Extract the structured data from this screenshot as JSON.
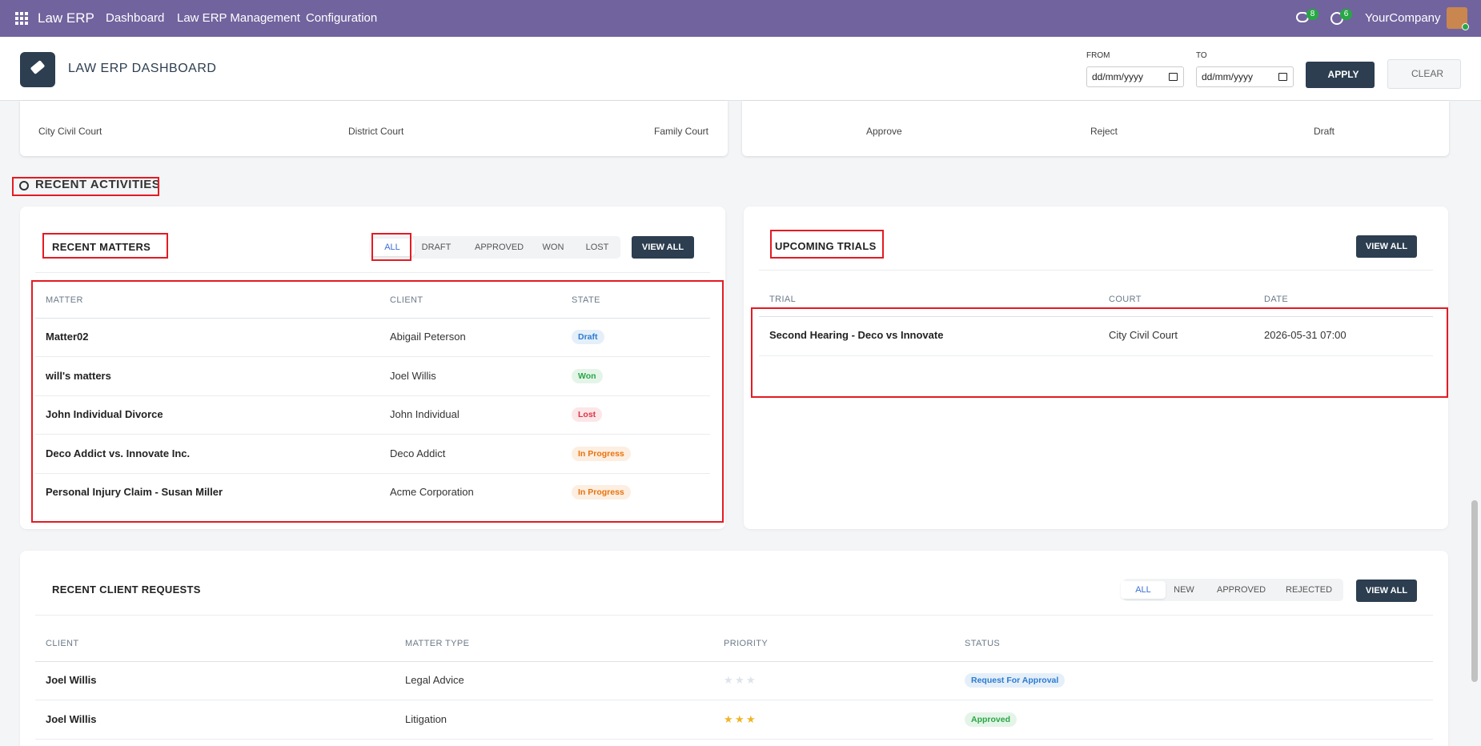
{
  "navbar": {
    "app": "Law ERP",
    "menu": [
      "Dashboard",
      "Law ERP Management",
      "Configuration"
    ],
    "messages": "8",
    "activities": "6",
    "company": "YourCompany"
  },
  "header": {
    "title": "LAW ERP DASHBOARD",
    "from_label": "FROM",
    "to_label": "TO",
    "date_placeholder": "dd/mm/yyyy",
    "apply": "APPLY",
    "clear": "CLEAR"
  },
  "court_legend": [
    "City Civil Court",
    "District Court",
    "Family Court"
  ],
  "status_legend": [
    "Approve",
    "Reject",
    "Draft"
  ],
  "section_title": "RECENT ACTIVITIES",
  "recent_matters": {
    "title": "RECENT MATTERS",
    "filters": [
      "ALL",
      "DRAFT",
      "APPROVED",
      "WON",
      "LOST"
    ],
    "view_all": "VIEW ALL",
    "columns": [
      "MATTER",
      "CLIENT",
      "STATE"
    ],
    "rows": [
      {
        "matter": "Matter02",
        "client": "Abigail Peterson",
        "state": "Draft",
        "state_color": "#2b7bd0"
      },
      {
        "matter": "will's matters",
        "client": "Joel Willis",
        "state": "Won",
        "state_color": "#28a745"
      },
      {
        "matter": "John Individual Divorce",
        "client": "John Individual",
        "state": "Lost",
        "state_color": "#dc3545"
      },
      {
        "matter": "Deco Addict vs. Innovate Inc.",
        "client": "Deco Addict",
        "state": "In Progress",
        "state_color": "#e8740c"
      },
      {
        "matter": "Personal Injury Claim - Susan Miller",
        "client": "Acme Corporation",
        "state": "In Progress",
        "state_color": "#e8740c"
      }
    ]
  },
  "upcoming_trials": {
    "title": "UPCOMING TRIALS",
    "view_all": "VIEW ALL",
    "columns": [
      "TRIAL",
      "COURT",
      "DATE"
    ],
    "rows": [
      {
        "trial": "Second Hearing - Deco vs Innovate",
        "court": "City Civil Court",
        "date": "2026-05-31 07:00"
      }
    ]
  },
  "client_requests": {
    "title": "RECENT CLIENT REQUESTS",
    "filters": [
      "ALL",
      "NEW",
      "APPROVED",
      "REJECTED"
    ],
    "view_all": "VIEW ALL",
    "columns": [
      "CLIENT",
      "MATTER TYPE",
      "PRIORITY",
      "STATUS"
    ],
    "rows": [
      {
        "client": "Joel Willis",
        "matter_type": "Legal Advice",
        "priority": 0,
        "status": "Request For Approval",
        "status_color": "#2b7bd0"
      },
      {
        "client": "Joel Willis",
        "matter_type": "Litigation",
        "priority": 3,
        "status": "Approved",
        "status_color": "#28a745"
      }
    ]
  }
}
